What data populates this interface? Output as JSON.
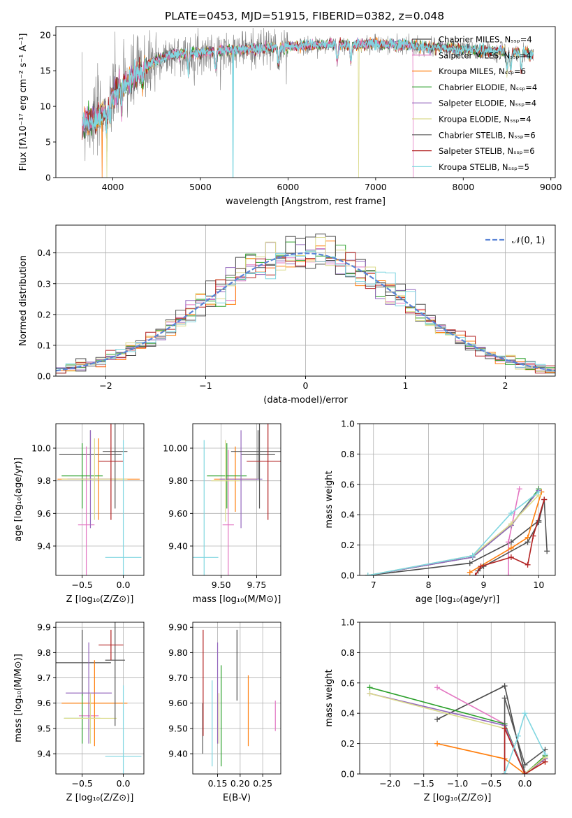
{
  "figure": {
    "title": "PLATE=0453, MJD=51915, FIBERID=0382, z=0.048"
  },
  "colors": {
    "data": "#808080",
    "models": [
      "#4a4a4a",
      "#e377c2",
      "#ff7f0e",
      "#2ca02c",
      "#9467bd",
      "#dbdb8d",
      "#555555",
      "#b22222",
      "#7fd6e0"
    ],
    "gauss": "#5b84d6"
  },
  "chart_data": [
    {
      "id": "spectrum",
      "type": "line",
      "title": "PLATE=0453, MJD=51915, FIBERID=0382, z=0.048",
      "xlabel": "wavelength [Angstrom, rest frame]",
      "ylabel": "Flux [fλ10⁻¹⁷ erg cm⁻² s⁻¹ A⁻¹]",
      "xlim": [
        3350,
        9050
      ],
      "ylim": [
        0,
        21.2
      ],
      "xticks": [
        4000,
        5000,
        6000,
        7000,
        8000,
        9000
      ],
      "yticks": [
        0,
        5,
        10,
        15,
        20
      ],
      "grid": false,
      "legend_position": "top-right",
      "legend": [
        "Chabrier MILES, Nₛₛₚ=4",
        "Salpeter MILES, Nₛₛₚ=4",
        "Kroupa MILES, Nₛₛₚ=6",
        "Chabrier ELODIE, Nₛₛₚ=4",
        "Salpeter ELODIE, Nₛₛₚ=4",
        "Kroupa ELODIE, Nₛₛₚ=4",
        "Chabrier STELIB, Nₛₛₚ=6",
        "Salpeter STELIB, Nₛₛₚ=6",
        "Kroupa STELIB, Nₛₛₚ=5"
      ],
      "continuum": {
        "x": [
          3650,
          3800,
          3900,
          4000,
          4100,
          4200,
          4300,
          4500,
          4700,
          5000,
          5200,
          5500,
          5800,
          6000,
          6200,
          6500,
          6800,
          7000,
          7400,
          7600,
          7800,
          8000,
          8200,
          8400,
          8600,
          8800
        ],
        "y": [
          7.5,
          8.2,
          9.3,
          11.5,
          13.0,
          13.5,
          15.0,
          16.5,
          17.3,
          17.5,
          17.8,
          18.0,
          18.2,
          18.4,
          18.5,
          18.7,
          18.6,
          18.8,
          18.5,
          18.3,
          18.2,
          18.0,
          17.8,
          17.7,
          17.6,
          17.3
        ]
      }
    },
    {
      "id": "residuals",
      "type": "line",
      "xlabel": "(data-model)/error",
      "ylabel": "Normed distribution",
      "xlim": [
        -2.5,
        2.5
      ],
      "ylim": [
        0,
        0.49
      ],
      "xticks": [
        -2,
        -1,
        0,
        1,
        2
      ],
      "yticks": [
        0.0,
        0.1,
        0.2,
        0.3,
        0.4
      ],
      "grid": true,
      "legend_position": "top-right",
      "legend": [
        "𝒩(0, 1)"
      ]
    },
    {
      "id": "age_vs_Z",
      "type": "scatter",
      "xlabel": "Z [log₁₀(Z/Z⊙)]",
      "ylabel": "age  [log₁₀(age/yr)]",
      "xlim": [
        -0.82,
        0.25
      ],
      "ylim": [
        9.22,
        10.15
      ],
      "xticks": [
        -0.5,
        0.0
      ],
      "yticks": [
        9.4,
        9.6,
        9.8,
        10.0
      ],
      "grid": true,
      "points": [
        {
          "x": -0.4,
          "y": 9.96,
          "xerr": 0.38,
          "yerr": 0.15,
          "c": 0
        },
        {
          "x": -0.45,
          "y": 9.53,
          "xerr": 0.1,
          "yerr": 0.48,
          "c": 1
        },
        {
          "x": -0.3,
          "y": 9.81,
          "xerr": 0.5,
          "yerr": 0.25,
          "c": 2
        },
        {
          "x": -0.5,
          "y": 9.83,
          "xerr": 0.25,
          "yerr": 0.2,
          "c": 3
        },
        {
          "x": -0.4,
          "y": 9.81,
          "xerr": 0.28,
          "yerr": 0.3,
          "c": 4
        },
        {
          "x": -0.35,
          "y": 9.81,
          "xerr": 0.4,
          "yerr": 0.25,
          "c": 5
        },
        {
          "x": -0.1,
          "y": 9.98,
          "xerr": 0.15,
          "yerr": 0.35,
          "c": 6
        },
        {
          "x": -0.15,
          "y": 9.92,
          "xerr": 0.15,
          "yerr": 0.36,
          "c": 7
        },
        {
          "x": 0.0,
          "y": 9.33,
          "xerr": 0.22,
          "yerr": 0.72,
          "c": 8
        }
      ]
    },
    {
      "id": "age_vs_mass",
      "type": "scatter",
      "xlabel": "mass [log₁₀(M/M⊙)]",
      "ylabel": "",
      "xlim": [
        9.3,
        9.92
      ],
      "ylim": [
        9.22,
        10.15
      ],
      "xticks": [
        9.5,
        9.75
      ],
      "yticks": [
        9.4,
        9.6,
        9.8,
        10.0
      ],
      "grid": true,
      "points": [
        {
          "x": 9.76,
          "y": 9.96,
          "xerr": 0.12,
          "yerr": 0.15,
          "c": 0
        },
        {
          "x": 9.55,
          "y": 9.53,
          "xerr": 0.04,
          "yerr": 0.46,
          "c": 1
        },
        {
          "x": 9.6,
          "y": 9.81,
          "xerr": 0.15,
          "yerr": 0.2,
          "c": 2
        },
        {
          "x": 9.54,
          "y": 9.83,
          "xerr": 0.14,
          "yerr": 0.2,
          "c": 3
        },
        {
          "x": 9.64,
          "y": 9.81,
          "xerr": 0.15,
          "yerr": 0.3,
          "c": 4
        },
        {
          "x": 9.53,
          "y": 9.8,
          "xerr": 0.1,
          "yerr": 0.25,
          "c": 5
        },
        {
          "x": 9.77,
          "y": 9.98,
          "xerr": 0.2,
          "yerr": 0.35,
          "c": 6
        },
        {
          "x": 9.83,
          "y": 9.92,
          "xerr": 0.15,
          "yerr": 0.36,
          "c": 7
        },
        {
          "x": 9.38,
          "y": 9.33,
          "xerr": 0.1,
          "yerr": 0.72,
          "c": 8
        }
      ]
    },
    {
      "id": "weight_vs_age",
      "type": "line",
      "xlabel": "age  [log₁₀(age/yr)]",
      "ylabel": "mass weight",
      "xlim": [
        6.75,
        10.3
      ],
      "ylim": [
        0,
        1
      ],
      "xticks": [
        7,
        8,
        9,
        10
      ],
      "yticks": [
        0.0,
        0.2,
        0.4,
        0.6,
        0.8,
        1.0
      ],
      "grid": true,
      "series": [
        {
          "c": 0,
          "x": [
            6.9,
            8.75,
            9.5,
            10.0
          ],
          "y": [
            0.0,
            0.08,
            0.22,
            0.36
          ]
        },
        {
          "c": 1,
          "x": [
            9.45,
            9.45,
            9.65
          ],
          "y": [
            0.0,
            0.22,
            0.57
          ]
        },
        {
          "c": 2,
          "x": [
            8.75,
            9.5,
            9.8,
            10.05
          ],
          "y": [
            0.02,
            0.18,
            0.25,
            0.55
          ]
        },
        {
          "c": 3,
          "x": [
            6.9,
            8.8,
            9.5,
            10.0
          ],
          "y": [
            0.0,
            0.12,
            0.33,
            0.57
          ]
        },
        {
          "c": 4,
          "x": [
            6.9,
            8.8,
            9.5,
            10.0
          ],
          "y": [
            0.0,
            0.12,
            0.33,
            0.56
          ]
        },
        {
          "c": 5,
          "x": [
            6.9,
            8.8,
            9.5,
            10.0
          ],
          "y": [
            0.0,
            0.13,
            0.34,
            0.53
          ]
        },
        {
          "c": 6,
          "x": [
            8.9,
            9.0,
            9.8,
            10.0,
            10.1,
            10.15
          ],
          "y": [
            0.03,
            0.06,
            0.22,
            0.35,
            0.5,
            0.16
          ]
        },
        {
          "c": 7,
          "x": [
            8.85,
            8.95,
            9.5,
            9.8,
            9.9,
            10.1
          ],
          "y": [
            0.0,
            0.06,
            0.12,
            0.07,
            0.26,
            0.5
          ]
        },
        {
          "c": 8,
          "x": [
            6.9,
            8.8,
            9.5,
            10.0
          ],
          "y": [
            0.0,
            0.13,
            0.41,
            0.55
          ]
        }
      ]
    },
    {
      "id": "mass_vs_Z",
      "type": "scatter",
      "xlabel": "Z [log₁₀(Z/Z⊙)]",
      "ylabel": "mass [log₁₀(M/M⊙)]",
      "xlim": [
        -0.82,
        0.25
      ],
      "ylim": [
        9.32,
        9.92
      ],
      "xticks": [
        -0.5,
        0.0
      ],
      "yticks": [
        9.4,
        9.5,
        9.6,
        9.7,
        9.8,
        9.9
      ],
      "grid": true,
      "points": [
        {
          "x": -0.5,
          "y": 9.76,
          "xerr": 0.35,
          "yerr": 0.13,
          "c": 0
        },
        {
          "x": -0.42,
          "y": 9.55,
          "xerr": 0.12,
          "yerr": 0.06,
          "c": 1
        },
        {
          "x": -0.35,
          "y": 9.6,
          "xerr": 0.4,
          "yerr": 0.17,
          "c": 2
        },
        {
          "x": -0.5,
          "y": 9.54,
          "xerr": 0.22,
          "yerr": 0.1,
          "c": 3
        },
        {
          "x": -0.42,
          "y": 9.64,
          "xerr": 0.28,
          "yerr": 0.2,
          "c": 4
        },
        {
          "x": -0.4,
          "y": 9.54,
          "xerr": 0.32,
          "yerr": 0.1,
          "c": 5
        },
        {
          "x": -0.1,
          "y": 9.77,
          "xerr": 0.12,
          "yerr": 0.26,
          "c": 6
        },
        {
          "x": -0.15,
          "y": 9.83,
          "xerr": 0.15,
          "yerr": 0.06,
          "c": 7
        },
        {
          "x": 0.0,
          "y": 9.39,
          "xerr": 0.22,
          "yerr": 0.28,
          "c": 8
        }
      ]
    },
    {
      "id": "mass_vs_ebv",
      "type": "scatter",
      "xlabel": "E(B-V)",
      "ylabel": "",
      "xlim": [
        0.095,
        0.29
      ],
      "ylim": [
        9.32,
        9.92
      ],
      "xticks": [
        0.15,
        0.2,
        0.25
      ],
      "yticks": [
        9.4,
        9.5,
        9.6,
        9.7,
        9.8,
        9.9
      ],
      "grid": true,
      "points": [
        {
          "x": 0.193,
          "y": 9.75,
          "xerr": 0,
          "yerr": 0.14,
          "c": 0
        },
        {
          "x": 0.278,
          "y": 9.55,
          "xerr": 0,
          "yerr": 0.06,
          "c": 1
        },
        {
          "x": 0.218,
          "y": 9.57,
          "xerr": 0,
          "yerr": 0.14,
          "c": 2
        },
        {
          "x": 0.158,
          "y": 9.55,
          "xerr": 0,
          "yerr": 0.2,
          "c": 3
        },
        {
          "x": 0.15,
          "y": 9.64,
          "xerr": 0,
          "yerr": 0.2,
          "c": 4
        },
        {
          "x": 0.153,
          "y": 9.54,
          "xerr": 0,
          "yerr": 0.1,
          "c": 5
        },
        {
          "x": 0.117,
          "y": 9.5,
          "xerr": 0,
          "yerr": 0.1,
          "c": 6
        },
        {
          "x": 0.118,
          "y": 9.68,
          "xerr": 0,
          "yerr": 0.21,
          "c": 7
        },
        {
          "x": 0.138,
          "y": 9.52,
          "xerr": 0,
          "yerr": 0.17,
          "c": 8
        }
      ]
    },
    {
      "id": "weight_vs_Z",
      "type": "line",
      "xlabel": "Z [log₁₀(Z/Z⊙)]",
      "ylabel": "mass weight",
      "xlim": [
        -2.45,
        0.45
      ],
      "ylim": [
        0,
        1
      ],
      "xticks": [
        -2.0,
        -1.5,
        -1.0,
        -0.5,
        0.0
      ],
      "yticks": [
        0.0,
        0.2,
        0.4,
        0.6,
        0.8,
        1.0
      ],
      "grid": true,
      "series": [
        {
          "c": 0,
          "x": [
            -1.3,
            -0.3,
            0.0,
            0.3
          ],
          "y": [
            0.36,
            0.58,
            0.0,
            0.1
          ]
        },
        {
          "c": 1,
          "x": [
            -1.3,
            -0.3,
            0.0,
            0.3
          ],
          "y": [
            0.57,
            0.33,
            0.0,
            0.12
          ]
        },
        {
          "c": 2,
          "x": [
            -1.3,
            -0.3,
            0.0,
            0.3
          ],
          "y": [
            0.2,
            0.1,
            0.0,
            0.08
          ]
        },
        {
          "c": 3,
          "x": [
            -2.3,
            -0.3,
            0.0,
            0.3
          ],
          "y": [
            0.57,
            0.33,
            0.0,
            0.12
          ]
        },
        {
          "c": 4,
          "x": [
            -2.3,
            -0.3,
            0.0,
            0.3
          ],
          "y": [
            0.53,
            0.32,
            0.0,
            0.1
          ]
        },
        {
          "c": 5,
          "x": [
            -2.3,
            -0.3,
            0.0,
            0.3
          ],
          "y": [
            0.53,
            0.3,
            0.0,
            0.11
          ]
        },
        {
          "c": 6,
          "x": [
            -0.3,
            -0.3,
            0.0,
            0.3
          ],
          "y": [
            0.0,
            0.5,
            0.06,
            0.16
          ]
        },
        {
          "c": 7,
          "x": [
            -0.3,
            -0.3,
            0.0,
            0.3
          ],
          "y": [
            0.0,
            0.3,
            0.0,
            0.08
          ]
        },
        {
          "c": 8,
          "x": [
            -0.3,
            -0.1,
            0.0,
            0.3
          ],
          "y": [
            0.0,
            0.25,
            0.4,
            0.13
          ]
        }
      ]
    }
  ]
}
